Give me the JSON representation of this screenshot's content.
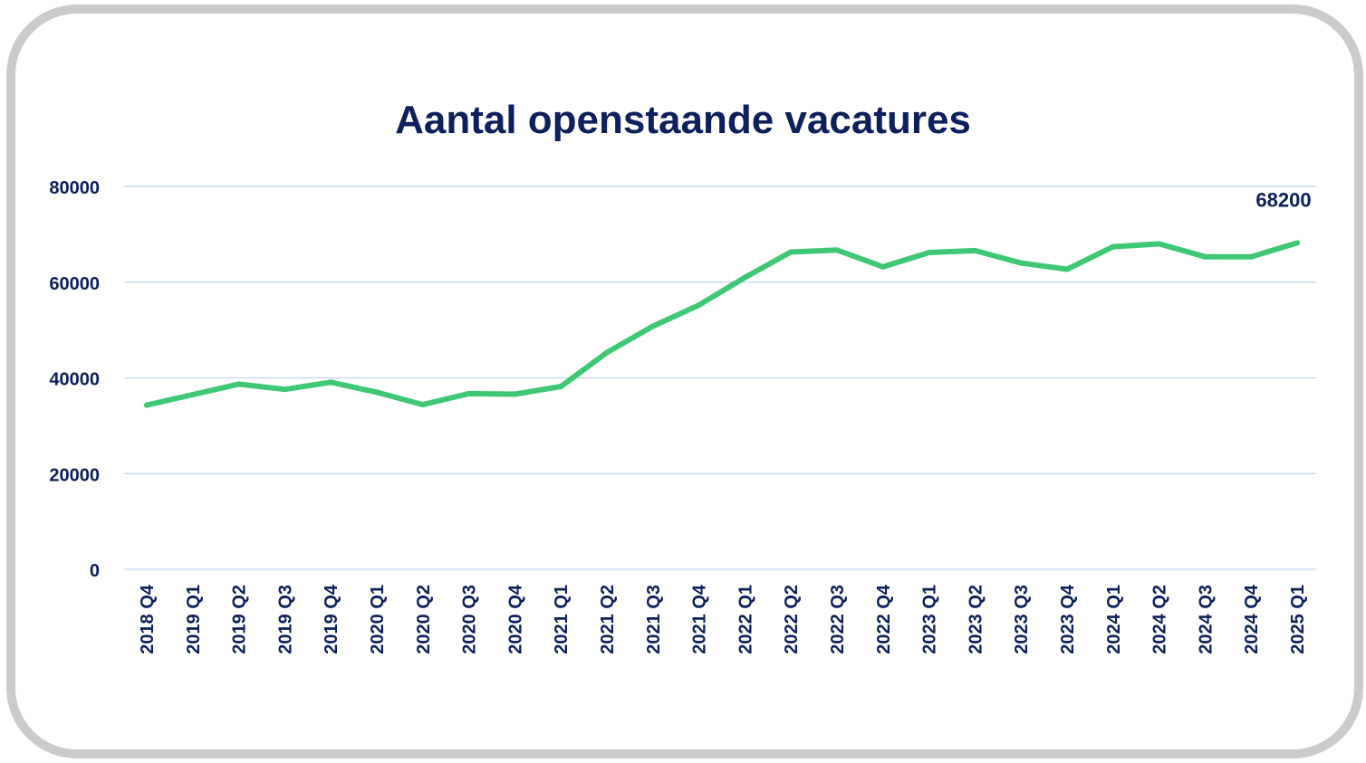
{
  "chart_data": {
    "type": "line",
    "title": "Aantal openstaande vacatures",
    "xlabel": "",
    "ylabel": "",
    "ylim": [
      0,
      80000
    ],
    "y_ticks": [
      "0",
      "20000",
      "40000",
      "60000",
      "80000"
    ],
    "grid": true,
    "categories": [
      "2018 Q4",
      "2019 Q1",
      "2019 Q2",
      "2019 Q3",
      "2019 Q4",
      "2020 Q1",
      "2020 Q2",
      "2020 Q3",
      "2020 Q4",
      "2021 Q1",
      "2021 Q2",
      "2021 Q3",
      "2021 Q4",
      "2022 Q1",
      "2022 Q2",
      "2022 Q3",
      "2022 Q4",
      "2023 Q1",
      "2023 Q2",
      "2023 Q3",
      "2023 Q4",
      "2024 Q1",
      "2024 Q2",
      "2024 Q3",
      "2024 Q4",
      "2025 Q1"
    ],
    "series": [
      {
        "values": [
          34300,
          36500,
          38700,
          37600,
          39100,
          37000,
          34400,
          36700,
          36600,
          38200,
          45300,
          50800,
          55200,
          61000,
          66300,
          66700,
          63200,
          66200,
          66600,
          64000,
          62700,
          67400,
          68000,
          65300,
          65300,
          68200
        ],
        "color": "#3ec874"
      }
    ],
    "annotations": [
      {
        "category": "2025 Q1",
        "text": "68200"
      }
    ],
    "gridline_color": "#c9daf2",
    "text_color": "#0d1f5c"
  }
}
